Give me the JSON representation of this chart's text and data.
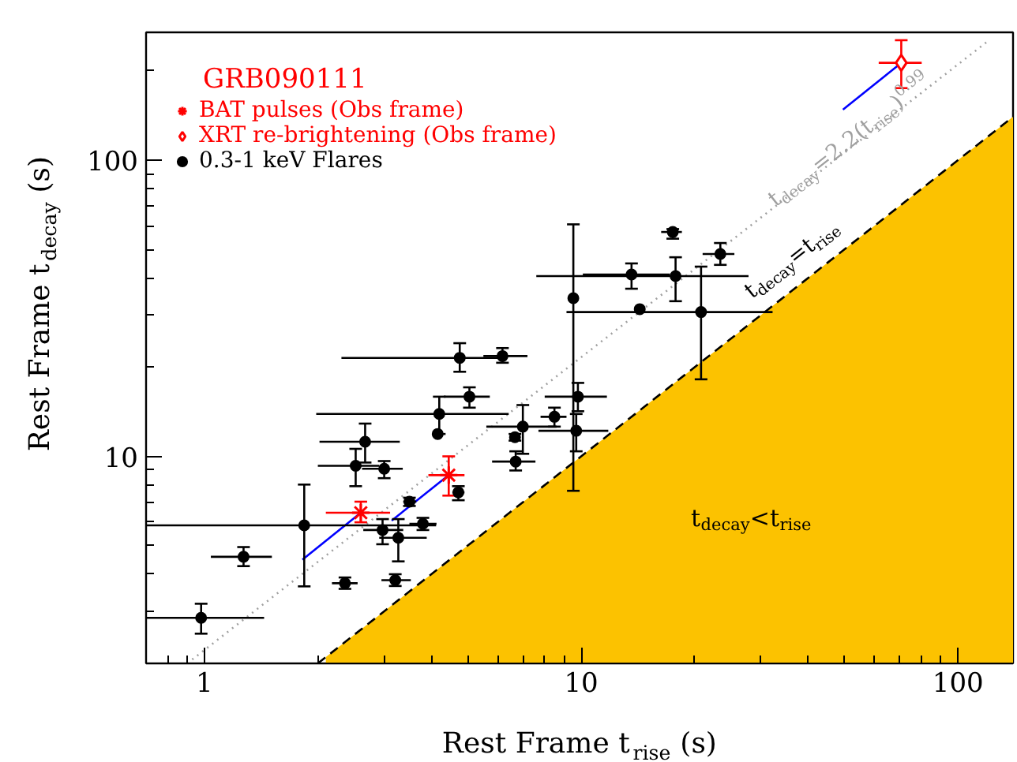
{
  "chart_data": {
    "type": "scatter",
    "xlabel": "Rest Frame t$_{rise}$ (s)",
    "ylabel": "Rest Frame t$_{decay}$ (s)",
    "log": "xy",
    "xlim": [
      0.7,
      140
    ],
    "ylim": [
      2.0,
      270
    ],
    "xticks": [
      1,
      10,
      100
    ],
    "yticks": [
      10,
      100
    ],
    "grid": false,
    "legend": "top left",
    "annotations": [
      "GRB090111",
      {
        "text": "t$_{decay}$=2.2(t$_{rise}$)$^{0.99}$",
        "x": 32,
        "y": 72
      },
      "t$_{decay}$=t$_{rise}$",
      "t$_{decay}$<t$_{rise}$"
    ],
    "series": [
      {
        "type": "area",
        "color": "#fcc200",
        "x": [
          2.1,
          140
        ],
        "values": [
          2.1,
          140
        ]
      },
      {
        "type": "line",
        "color": "#000000",
        "line_style": "dashed",
        "marker": "none",
        "x": [
          2.0,
          140
        ],
        "values": [
          2.0,
          140
        ]
      },
      {
        "type": "line",
        "color": "#a0a0a0",
        "line_style": "dotted",
        "marker": "none",
        "x": [
          0.9,
          120
        ],
        "values": [
          2.0,
          252
        ]
      },
      {
        "type": "line",
        "color": "#0000ff",
        "line_style": "solid",
        "marker": "none",
        "x": [
          70.7,
          49.5
        ],
        "values": [
          213,
          148
        ]
      },
      {
        "type": "line",
        "color": "#0000ff",
        "line_style": "solid",
        "marker": "none",
        "x": [
          4.45,
          3.14
        ],
        "values": [
          8.64,
          6.07
        ]
      },
      {
        "type": "line",
        "color": "#0000ff",
        "line_style": "solid",
        "marker": "none",
        "x": [
          2.6,
          1.82
        ],
        "values": [
          6.45,
          4.48
        ]
      },
      {
        "name": "BAT pulses (Obs frame)",
        "color": "#ff0000",
        "marker": "cross",
        "x": [
          2.6,
          4.45
        ],
        "values": [
          6.45,
          8.64
        ],
        "xerrors": [
          [
            2.1,
            3.11
          ],
          [
            3.93,
            4.9
          ]
        ],
        "errors": [
          [
            5.99,
            7.03
          ],
          [
            7.37,
            10.0
          ]
        ]
      },
      {
        "name": "XRT re-brightening (Obs frame)",
        "color": "#ff0000",
        "marker": "diamond",
        "x": [
          70.7
        ],
        "values": [
          213
        ],
        "xerrors": [
          [
            61.6,
            80.1
          ]
        ],
        "errors": [
          [
            175,
            254
          ]
        ]
      },
      {
        "name": "0.3-1 keV Flares",
        "color": "#000000",
        "marker": "circle",
        "x": [
          0.98,
          1.27,
          1.84,
          2.36,
          2.52,
          2.67,
          3.0,
          2.97,
          3.21,
          3.27,
          3.5,
          3.8,
          4.2,
          4.16,
          4.72,
          4.76,
          5.05,
          6.18,
          6.7,
          6.67,
          7.0,
          8.49,
          9.53,
          9.8,
          9.7,
          13.6,
          14.3,
          17.8,
          17.5,
          20.8,
          23.4
        ],
        "values": [
          2.85,
          4.58,
          5.85,
          3.73,
          9.29,
          11.2,
          9.08,
          5.64,
          3.82,
          5.31,
          7.03,
          5.92,
          13.9,
          11.9,
          7.56,
          21.5,
          15.9,
          21.8,
          9.6,
          11.6,
          12.6,
          13.6,
          34.2,
          15.9,
          12.2,
          41.1,
          31.4,
          40.6,
          57.2,
          30.7,
          48.2
        ],
        "xerrors": [
          [
            0.7,
            1.44
          ],
          [
            1.04,
            1.51
          ],
          [
            0.7,
            4.12
          ],
          [
            2.18,
            2.55
          ],
          [
            2.0,
            2.91
          ],
          [
            2.02,
            3.3
          ],
          [
            2.62,
            3.36
          ],
          [
            2.64,
            3.37
          ],
          [
            2.95,
            3.53
          ],
          [
            2.91,
            3.89
          ],
          [
            3.37,
            3.65
          ],
          [
            3.5,
            4.13
          ],
          [
            1.98,
            6.42
          ],
          null,
          [
            4.55,
            4.9
          ],
          [
            2.31,
            6.0
          ],
          [
            4.32,
            5.72
          ],
          [
            5.5,
            7.2
          ],
          [
            5.8,
            7.56
          ],
          [
            6.5,
            6.9
          ],
          [
            5.6,
            8.6
          ],
          [
            7.8,
            9.14
          ],
          null,
          [
            8.0,
            11.7
          ],
          [
            7.7,
            11.8
          ],
          [
            10.1,
            17.2
          ],
          null,
          [
            7.6,
            27.8
          ],
          [
            16.3,
            18.5
          ],
          [
            9.14,
            32.2
          ],
          [
            21.0,
            25.5
          ]
        ],
        "errors": [
          [
            2.52,
            3.18
          ],
          [
            4.26,
            4.94
          ],
          [
            3.64,
            8.03
          ],
          [
            3.57,
            3.9
          ],
          [
            7.93,
            10.6
          ],
          [
            9.53,
            12.9
          ],
          [
            8.44,
            9.64
          ],
          [
            5.05,
            6.14
          ],
          [
            3.65,
            4.0
          ],
          [
            4.42,
            6.14
          ],
          [
            6.8,
            7.25
          ],
          [
            5.64,
            6.2
          ],
          [
            11.9,
            15.9
          ],
          null,
          [
            7.11,
            7.93
          ],
          [
            19.3,
            24.1
          ],
          [
            14.6,
            17.1
          ],
          [
            20.7,
            23.2
          ],
          [
            8.96,
            10.4
          ],
          [
            11.3,
            11.9
          ],
          [
            10.2,
            14.9
          ],
          [
            12.6,
            14.6
          ],
          [
            7.65,
            60.7
          ],
          [
            14.2,
            17.7
          ],
          [
            10.4,
            13.9
          ],
          [
            36.8,
            44.8
          ],
          null,
          [
            33.4,
            47.0
          ],
          [
            54.3,
            58.5
          ],
          [
            18.2,
            43.7
          ],
          [
            44.3,
            52.5
          ]
        ]
      }
    ]
  }
}
